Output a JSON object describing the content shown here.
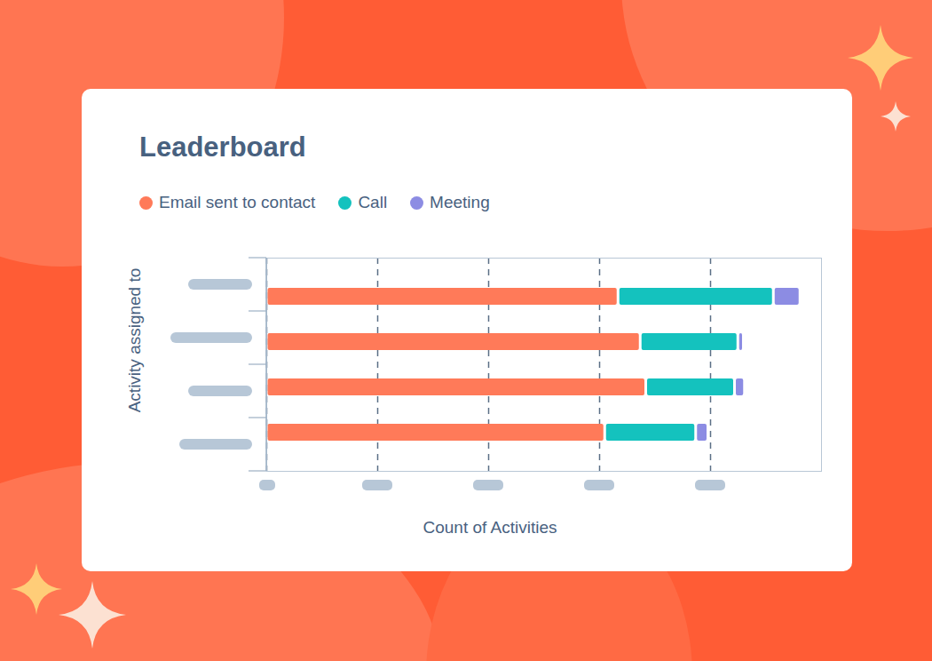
{
  "chart_data": {
    "type": "bar",
    "title": "Leaderboard",
    "orientation": "horizontal",
    "stacked": true,
    "categories": [
      null,
      null,
      null,
      null
    ],
    "series": [
      {
        "name": "Email sent to contact",
        "color": "#FF7A59",
        "values": [
          317,
          337,
          342,
          305
        ]
      },
      {
        "name": "Call",
        "color": "#14C2BE",
        "values": [
          140,
          88,
          80,
          82
        ]
      },
      {
        "name": "Meeting",
        "color": "#8C8CE3",
        "values": [
          24,
          5,
          9,
          11
        ]
      }
    ],
    "xlabel": "Count of Activities",
    "ylabel": "Activity assigned to",
    "xlim": [
      0,
      500
    ],
    "xticks": [
      0,
      100,
      200,
      300,
      400
    ],
    "grid": true,
    "tick_labels": false,
    "legend": "top"
  }
}
